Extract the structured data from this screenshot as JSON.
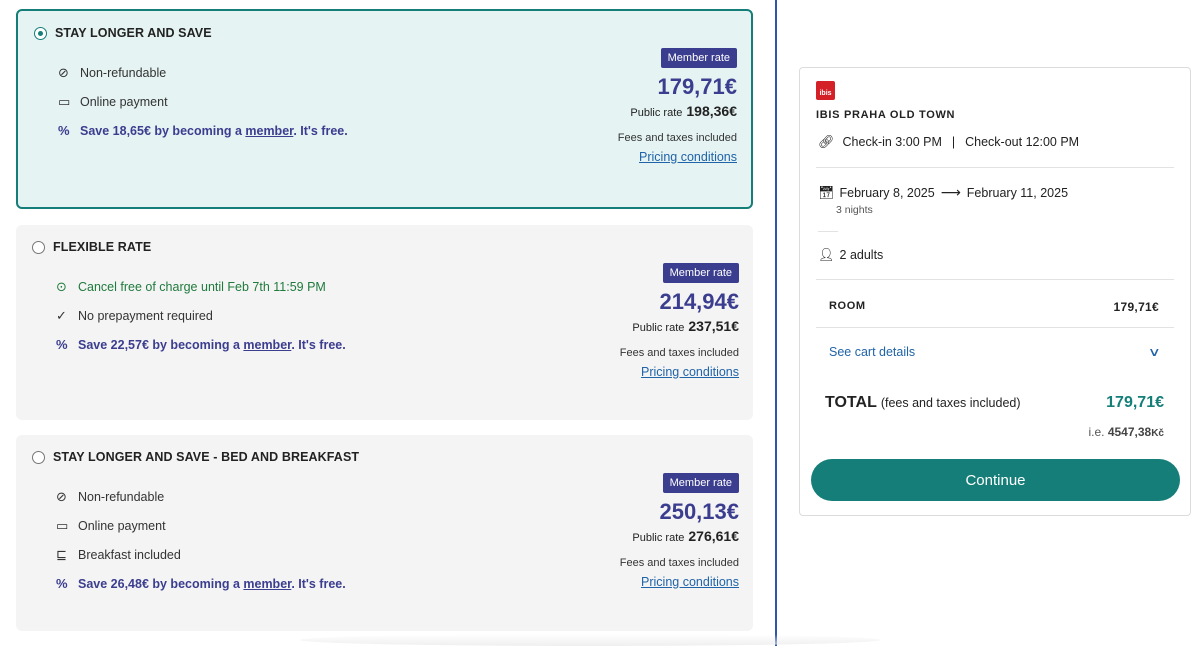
{
  "rates": [
    {
      "title": "STAY LONGER AND SAVE",
      "selected": true,
      "features": [
        {
          "icon": "non-refundable-icon",
          "glyph": "⊘",
          "text": "Non-refundable",
          "style": "normal"
        },
        {
          "icon": "card-icon",
          "glyph": "▭",
          "text": "Online payment",
          "style": "normal"
        }
      ],
      "member_pre": "Save 18,65€ by becoming a ",
      "member_link": "member",
      "member_post": ". It's free.",
      "badge": "Member rate",
      "member_price": "179,71€",
      "public_label": "Public rate",
      "public_price": "198,36€",
      "fees": "Fees and taxes included",
      "pricing_link": "Pricing conditions"
    },
    {
      "title": "FLEXIBLE RATE",
      "selected": false,
      "features": [
        {
          "icon": "check-circle-icon",
          "glyph": "⊙",
          "text": "Cancel free of charge until Feb 7th 11:59 PM",
          "style": "green"
        },
        {
          "icon": "check-icon",
          "glyph": "✓",
          "text": "No prepayment required",
          "style": "normal"
        }
      ],
      "member_pre": "Save 22,57€ by becoming a ",
      "member_link": "member",
      "member_post": ". It's free.",
      "badge": "Member rate",
      "member_price": "214,94€",
      "public_label": "Public rate",
      "public_price": "237,51€",
      "fees": "Fees and taxes included",
      "pricing_link": "Pricing conditions"
    },
    {
      "title": "STAY LONGER AND SAVE - BED AND BREAKFAST",
      "selected": false,
      "features": [
        {
          "icon": "non-refundable-icon",
          "glyph": "⊘",
          "text": "Non-refundable",
          "style": "normal"
        },
        {
          "icon": "card-icon",
          "glyph": "▭",
          "text": "Online payment",
          "style": "normal"
        },
        {
          "icon": "breakfast-icon",
          "glyph": "⊑",
          "text": "Breakfast included",
          "style": "normal"
        }
      ],
      "member_pre": "Save 26,48€ by becoming a ",
      "member_link": "member",
      "member_post": ". It's free.",
      "badge": "Member rate",
      "member_price": "250,13€",
      "public_label": "Public rate",
      "public_price": "276,61€",
      "fees": "Fees and taxes included",
      "pricing_link": "Pricing conditions"
    }
  ],
  "summary": {
    "logo_text": "ibis",
    "hotel_name": "IBIS PRAHA OLD TOWN",
    "checkin": "Check-in 3:00 PM",
    "separator": "|",
    "checkout": "Check-out 12:00 PM",
    "date_from": "February 8, 2025",
    "date_arrow": "⟶",
    "date_to": "February 11, 2025",
    "nights": "3 nights",
    "guests": "2 adults",
    "room_label": "ROOM",
    "room_price": "179,71€",
    "cart_link": "See cart details",
    "total_label": "TOTAL",
    "total_sub": "(fees and taxes included)",
    "total_price": "179,71€",
    "ie_prefix": "i.e. ",
    "ie_value": "4547,38",
    "ie_currency": "Kč",
    "continue": "Continue"
  },
  "colors": {
    "accent": "#157e78",
    "member": "#3b3d8f",
    "link": "#1f63a8",
    "divider": "#2f56a8"
  }
}
